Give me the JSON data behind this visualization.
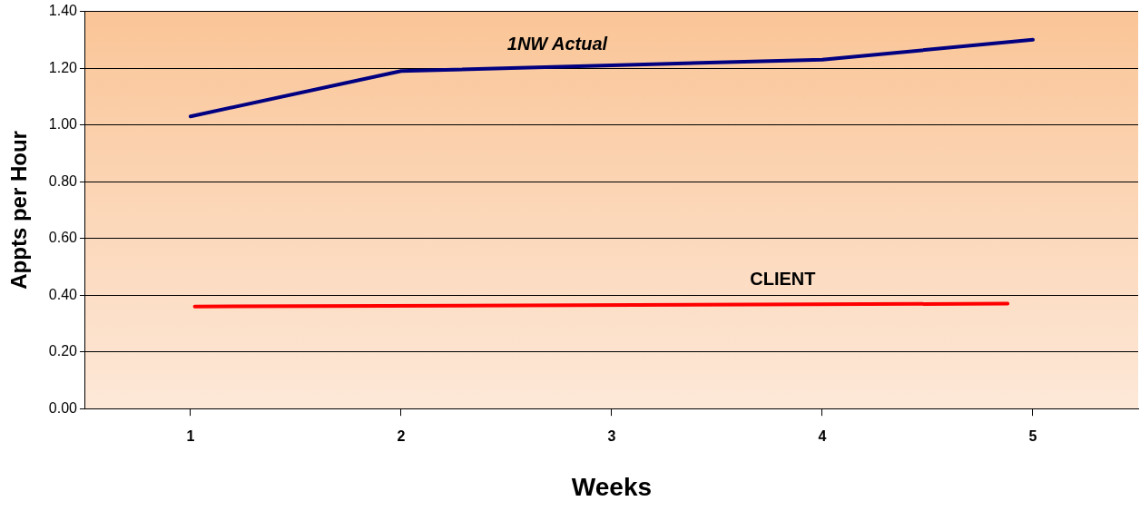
{
  "chart_data": {
    "type": "line",
    "xlabel": "Weeks",
    "ylabel": "Appts per Hour",
    "x": [
      1,
      2,
      3,
      4,
      5
    ],
    "xlim": [
      0.5,
      5.5
    ],
    "xticks": [
      1,
      2,
      3,
      4,
      5
    ],
    "ylim": [
      0,
      1.4
    ],
    "yticks": [
      {
        "value": 0,
        "label": "0.00"
      },
      {
        "value": 0.2,
        "label": "0.20"
      },
      {
        "value": 0.4,
        "label": "0.40"
      },
      {
        "value": 0.6,
        "label": "0.60"
      },
      {
        "value": 0.8,
        "label": "0.80"
      },
      {
        "value": 1,
        "label": "1.00"
      },
      {
        "value": 1.2,
        "label": "1.20"
      },
      {
        "value": 1.4,
        "label": "1.40"
      }
    ],
    "series": [
      {
        "name": "1NW Actual",
        "color": "#000080",
        "values": [
          1.03,
          1.19,
          1.21,
          1.23,
          1.3
        ]
      },
      {
        "name": "CLIENT",
        "color": "#ff0000",
        "x": [
          1.02,
          4.88
        ],
        "values": [
          0.36,
          0.37
        ]
      }
    ],
    "grid": "y",
    "legend": false,
    "marker": "none",
    "line_style": "solid"
  }
}
